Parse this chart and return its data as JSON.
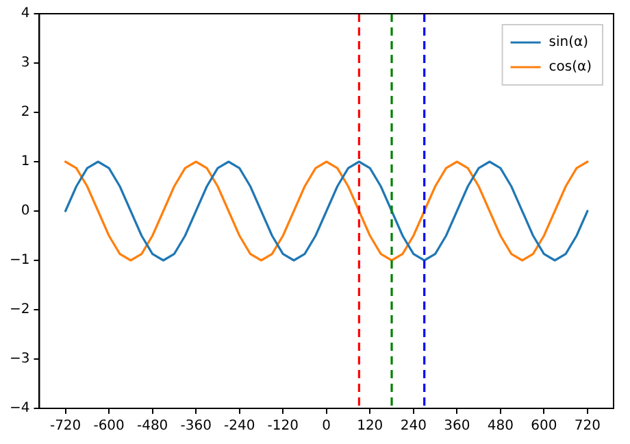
{
  "chart_data": {
    "type": "line",
    "x": [
      -720,
      -690,
      -660,
      -630,
      -600,
      -570,
      -540,
      -510,
      -480,
      -450,
      -420,
      -390,
      -360,
      -330,
      -300,
      -270,
      -240,
      -210,
      -180,
      -150,
      -120,
      -90,
      -60,
      -30,
      0,
      30,
      60,
      90,
      120,
      150,
      180,
      210,
      240,
      270,
      300,
      330,
      360,
      390,
      420,
      450,
      480,
      510,
      540,
      570,
      600,
      630,
      660,
      690,
      720
    ],
    "series": [
      {
        "name": "sin(α)",
        "color": "#1f77b4",
        "values": [
          0,
          0.5,
          0.87,
          1,
          0.87,
          0.5,
          0,
          -0.5,
          -0.87,
          -1,
          -0.87,
          -0.5,
          0,
          0.5,
          0.87,
          1,
          0.87,
          0.5,
          0,
          -0.5,
          -0.87,
          -1,
          -0.87,
          -0.5,
          0,
          0.5,
          0.87,
          1,
          0.87,
          0.5,
          0,
          -0.5,
          -0.87,
          -1,
          -0.87,
          -0.5,
          0,
          0.5,
          0.87,
          1,
          0.87,
          0.5,
          0,
          -0.5,
          -0.87,
          -1,
          -0.87,
          -0.5,
          0
        ]
      },
      {
        "name": "cos(α)",
        "color": "#ff7f0e",
        "values": [
          1,
          0.87,
          0.5,
          0,
          -0.5,
          -0.87,
          -1,
          -0.87,
          -0.5,
          0,
          0.5,
          0.87,
          1,
          0.87,
          0.5,
          0,
          -0.5,
          -0.87,
          -1,
          -0.87,
          -0.5,
          0,
          0.5,
          0.87,
          1,
          0.87,
          0.5,
          0,
          -0.5,
          -0.87,
          -1,
          -0.87,
          -0.5,
          0,
          0.5,
          0.87,
          1,
          0.87,
          0.5,
          0,
          -0.5,
          -0.87,
          -1,
          -0.87,
          -0.5,
          0,
          0.5,
          0.87,
          1
        ]
      }
    ],
    "xlim": [
      -792,
      792
    ],
    "xticks": [
      -720,
      -600,
      -480,
      -360,
      -240,
      -120,
      0,
      120,
      240,
      360,
      480,
      600,
      720
    ],
    "ylim": [
      -4,
      4
    ],
    "yticks": [
      {
        "value": -4,
        "label": "−4"
      },
      {
        "value": -3,
        "label": "−3"
      },
      {
        "value": -2,
        "label": "−2"
      },
      {
        "value": -1,
        "label": "−1"
      },
      0,
      1,
      2,
      3,
      4
    ],
    "ref_lines": [
      {
        "axis": "x",
        "value": 90,
        "color": "#ff0000",
        "line_style": "dashed"
      },
      {
        "axis": "x",
        "value": 180,
        "color": "#008000",
        "line_style": "dashed"
      },
      {
        "axis": "x",
        "value": 270,
        "color": "#0000ff",
        "line_style": "dashed"
      }
    ],
    "grid": false,
    "legend": "top right",
    "marker": "none",
    "line_style": "solid"
  }
}
